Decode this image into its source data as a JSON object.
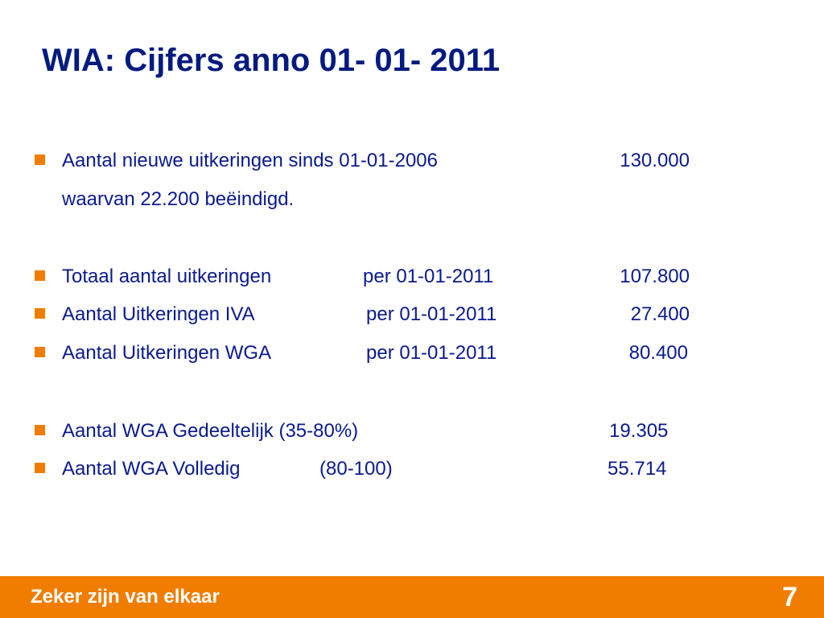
{
  "slide": {
    "title": "WIA: Cijfers anno 01- 01- 2011"
  },
  "bullets": [
    {
      "label": "Aantal nieuwe uitkeringen sinds 01-01-2006",
      "value": "130.000",
      "sub": "waarvan 22.200 beëindigd."
    },
    {
      "label": "Totaal aantal uitkeringen",
      "date": "per 01-01-2011",
      "value": "107.800"
    },
    {
      "label": "Aantal Uitkeringen IVA",
      "date": "per 01-01-2011",
      "value": "27.400"
    },
    {
      "label": "Aantal Uitkeringen WGA",
      "date": "per 01-01-2011",
      "value": "80.400"
    },
    {
      "label": "Aantal WGA Gedeeltelijk (35-80%)",
      "value": "19.305"
    },
    {
      "label": "Aantal WGA Volledig",
      "range": "(80-100)",
      "value": "55.714"
    }
  ],
  "footer": {
    "tagline": "Zeker zijn van elkaar",
    "page_number": "7"
  },
  "colors": {
    "title": "#001a80",
    "body_text": "#0a1a8c",
    "accent_orange": "#f07d00",
    "footer_text": "#ffffff"
  }
}
